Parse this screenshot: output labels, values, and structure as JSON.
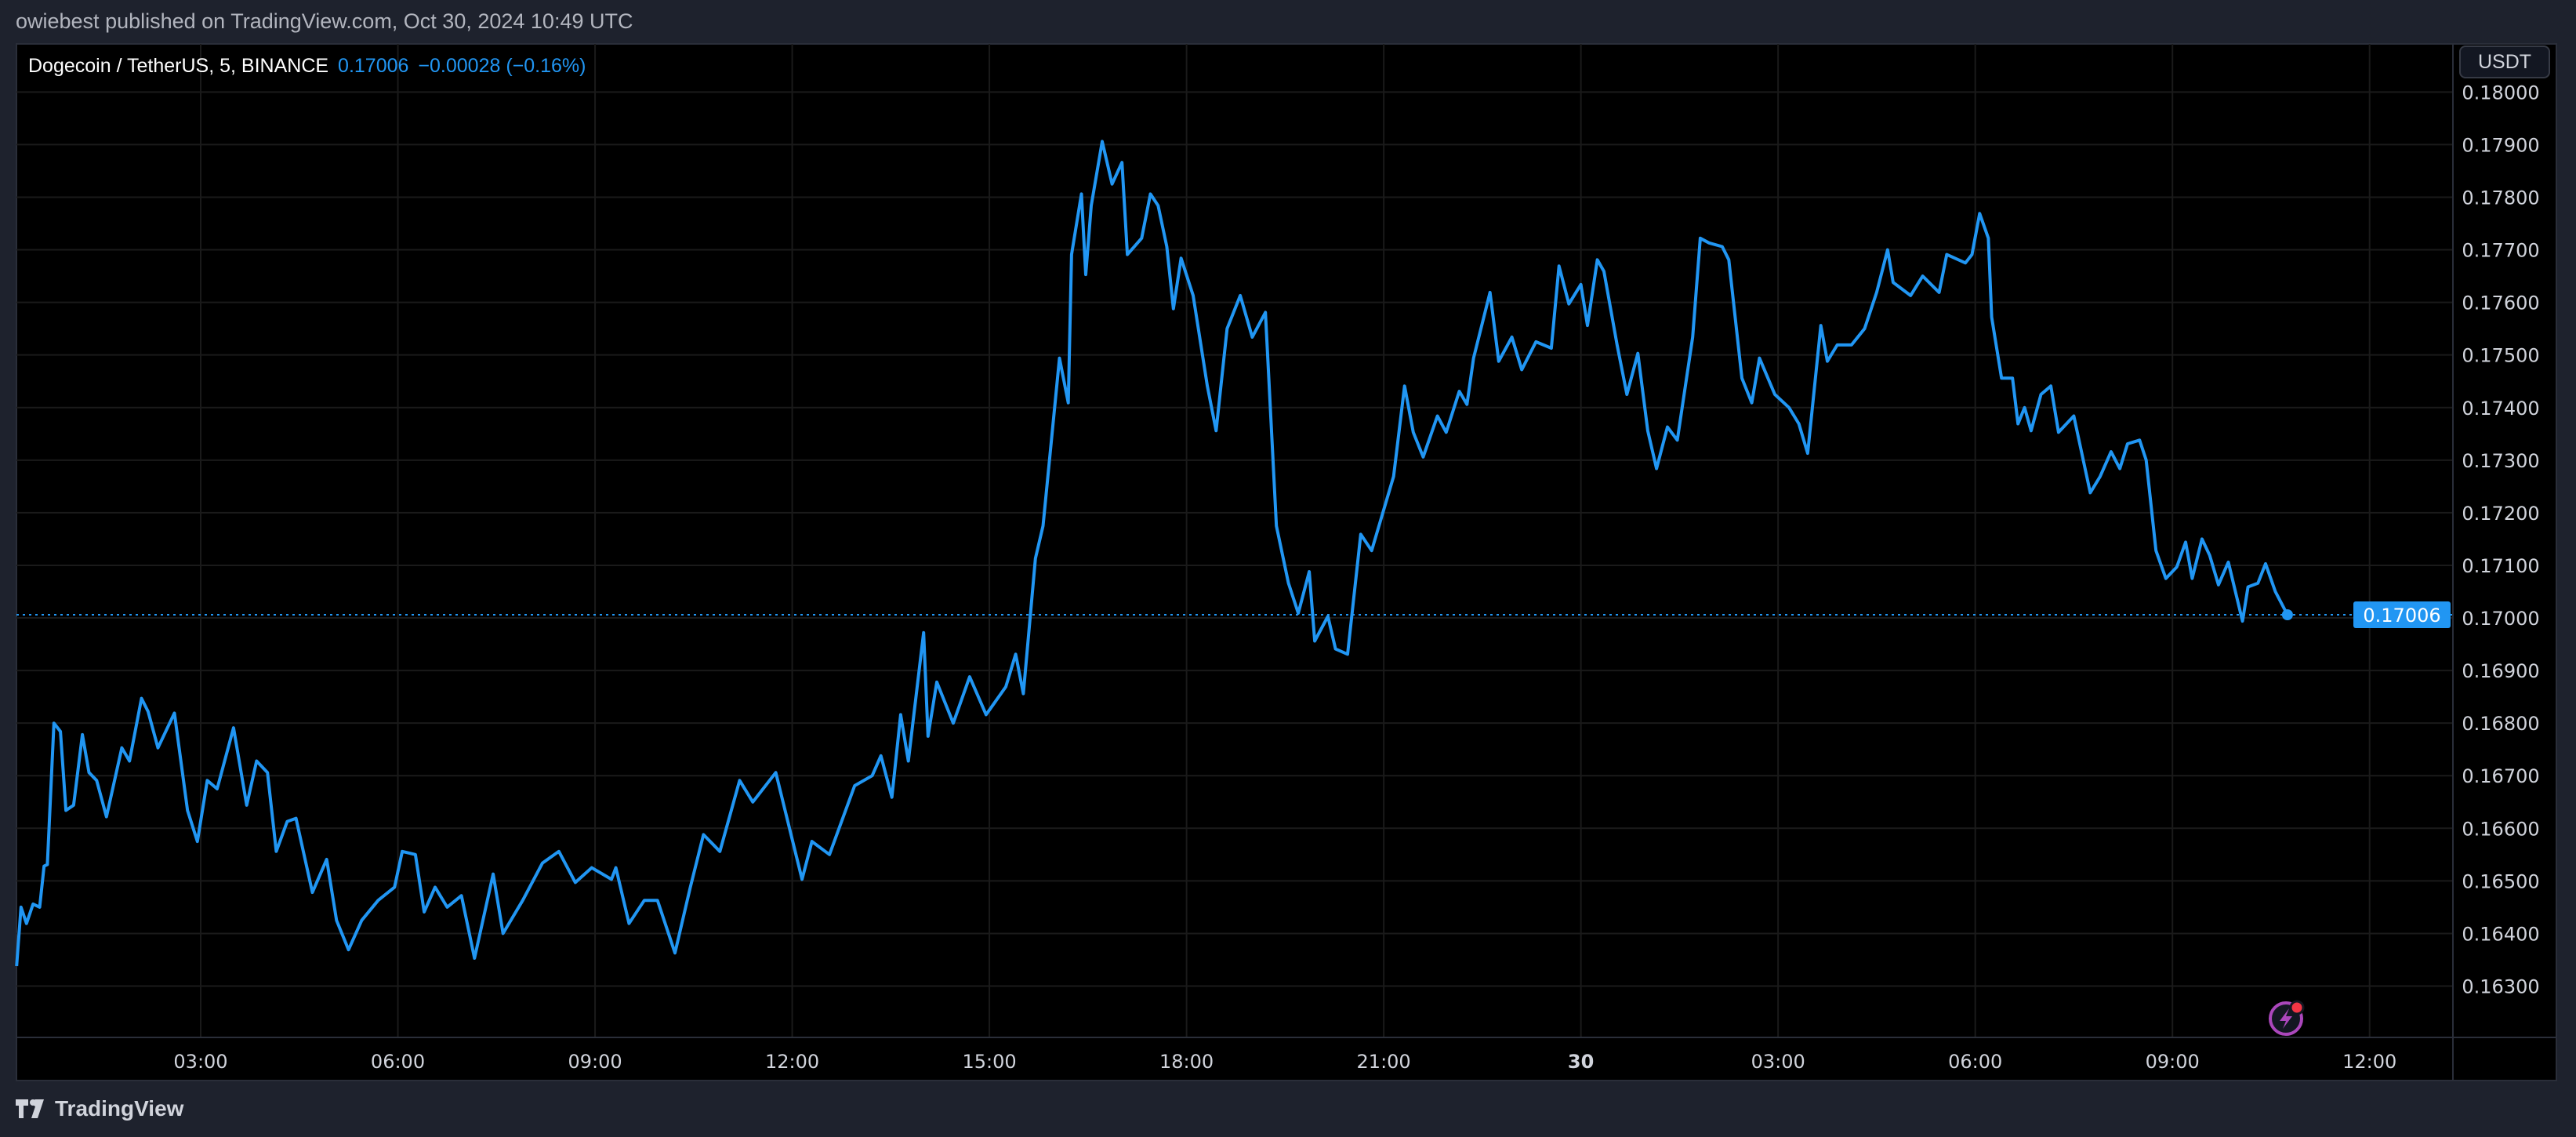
{
  "header": {
    "published": "owiebest published on TradingView.com, Oct 30, 2024 10:49 UTC"
  },
  "legend": {
    "symbol": "Dogecoin / TetherUS, 5, BINANCE",
    "last": "0.17006",
    "change": "−0.00028 (−0.16%)"
  },
  "currency_button": "USDT",
  "footer": {
    "brand": "TradingView"
  },
  "colors": {
    "line": "#2196f3",
    "background": "#000000",
    "grid": "#1a1a1a",
    "alert_icon": "#ab47bc",
    "alert_dot": "#f23645"
  },
  "chart_data": {
    "type": "line",
    "title": "Dogecoin / TetherUS, 5, BINANCE",
    "grid": true,
    "ylim": [
      0.1621,
      0.1806
    ],
    "yticks": [
      "0.16300",
      "0.16400",
      "0.16500",
      "0.16600",
      "0.16700",
      "0.16800",
      "0.16900",
      "0.17000",
      "0.17100",
      "0.17200",
      "0.17300",
      "0.17400",
      "0.17500",
      "0.17600",
      "0.17700",
      "0.17800",
      "0.17900",
      "0.18000"
    ],
    "xticks": [
      {
        "t": "2024-10-29 03:00",
        "label": "03:00"
      },
      {
        "t": "2024-10-29 06:00",
        "label": "06:00"
      },
      {
        "t": "2024-10-29 09:00",
        "label": "09:00"
      },
      {
        "t": "2024-10-29 12:00",
        "label": "12:00"
      },
      {
        "t": "2024-10-29 15:00",
        "label": "15:00"
      },
      {
        "t": "2024-10-29 18:00",
        "label": "18:00"
      },
      {
        "t": "2024-10-29 21:00",
        "label": "21:00"
      },
      {
        "t": "2024-10-30 00:00",
        "label": "30",
        "bold": true
      },
      {
        "t": "2024-10-30 03:00",
        "label": "03:00"
      },
      {
        "t": "2024-10-30 06:00",
        "label": "06:00"
      },
      {
        "t": "2024-10-30 09:00",
        "label": "09:00"
      },
      {
        "t": "2024-10-30 12:00",
        "label": "12:00"
      }
    ],
    "last_price": 0.17006,
    "last_price_label": "0.17006",
    "series": [
      {
        "points": [
          [
            "2024-10-29 00:12",
            0.16338
          ],
          [
            "2024-10-29 00:16",
            0.1645
          ],
          [
            "2024-10-29 00:21",
            0.16419
          ],
          [
            "2024-10-29 00:27",
            0.16456
          ],
          [
            "2024-10-29 00:33",
            0.1645
          ],
          [
            "2024-10-29 00:37",
            0.16528
          ],
          [
            "2024-10-29 00:40",
            0.16531
          ],
          [
            "2024-10-29 00:46",
            0.168
          ],
          [
            "2024-10-29 00:52",
            0.16784
          ],
          [
            "2024-10-29 00:57",
            0.16634
          ],
          [
            "2024-10-29 01:04",
            0.16644
          ],
          [
            "2024-10-29 01:12",
            0.16778
          ],
          [
            "2024-10-29 01:18",
            0.16706
          ],
          [
            "2024-10-29 01:25",
            0.16691
          ],
          [
            "2024-10-29 01:34",
            0.16622
          ],
          [
            "2024-10-29 01:48",
            0.16753
          ],
          [
            "2024-10-29 01:55",
            0.16728
          ],
          [
            "2024-10-29 02:06",
            0.16847
          ],
          [
            "2024-10-29 02:12",
            0.16822
          ],
          [
            "2024-10-29 02:21",
            0.16753
          ],
          [
            "2024-10-29 02:36",
            0.16819
          ],
          [
            "2024-10-29 02:48",
            0.16634
          ],
          [
            "2024-10-29 02:57",
            0.16575
          ],
          [
            "2024-10-29 03:06",
            0.16691
          ],
          [
            "2024-10-29 03:15",
            0.16675
          ],
          [
            "2024-10-29 03:30",
            0.16791
          ],
          [
            "2024-10-29 03:42",
            0.16644
          ],
          [
            "2024-10-29 03:51",
            0.16728
          ],
          [
            "2024-10-29 04:01",
            0.16706
          ],
          [
            "2024-10-29 04:09",
            0.16556
          ],
          [
            "2024-10-29 04:19",
            0.16613
          ],
          [
            "2024-10-29 04:27",
            0.16619
          ],
          [
            "2024-10-29 04:42",
            0.16478
          ],
          [
            "2024-10-29 04:55",
            0.16541
          ],
          [
            "2024-10-29 05:04",
            0.16425
          ],
          [
            "2024-10-29 05:15",
            0.16369
          ],
          [
            "2024-10-29 05:27",
            0.16425
          ],
          [
            "2024-10-29 05:42",
            0.16463
          ],
          [
            "2024-10-29 05:57",
            0.16488
          ],
          [
            "2024-10-29 06:04",
            0.16556
          ],
          [
            "2024-10-29 06:16",
            0.1655
          ],
          [
            "2024-10-29 06:24",
            0.16441
          ],
          [
            "2024-10-29 06:34",
            0.16488
          ],
          [
            "2024-10-29 06:45",
            0.1645
          ],
          [
            "2024-10-29 06:58",
            0.16472
          ],
          [
            "2024-10-29 07:10",
            0.16353
          ],
          [
            "2024-10-29 07:27",
            0.16513
          ],
          [
            "2024-10-29 07:36",
            0.164
          ],
          [
            "2024-10-29 07:54",
            0.16463
          ],
          [
            "2024-10-29 08:12",
            0.16534
          ],
          [
            "2024-10-29 08:27",
            0.16556
          ],
          [
            "2024-10-29 08:42",
            0.16497
          ],
          [
            "2024-10-29 08:57",
            0.16525
          ],
          [
            "2024-10-29 09:15",
            0.16503
          ],
          [
            "2024-10-29 09:19",
            0.16525
          ],
          [
            "2024-10-29 09:31",
            0.16419
          ],
          [
            "2024-10-29 09:45",
            0.16463
          ],
          [
            "2024-10-29 09:57",
            0.16463
          ],
          [
            "2024-10-29 10:13",
            0.16363
          ],
          [
            "2024-10-29 10:27",
            0.16488
          ],
          [
            "2024-10-29 10:39",
            0.16588
          ],
          [
            "2024-10-29 10:54",
            0.16556
          ],
          [
            "2024-10-29 11:12",
            0.16691
          ],
          [
            "2024-10-29 11:24",
            0.1665
          ],
          [
            "2024-10-29 11:45",
            0.16706
          ],
          [
            "2024-10-29 12:09",
            0.16503
          ],
          [
            "2024-10-29 12:18",
            0.16575
          ],
          [
            "2024-10-29 12:34",
            0.1655
          ],
          [
            "2024-10-29 12:57",
            0.16681
          ],
          [
            "2024-10-29 13:13",
            0.167
          ],
          [
            "2024-10-29 13:21",
            0.16738
          ],
          [
            "2024-10-29 13:31",
            0.16659
          ],
          [
            "2024-10-29 13:39",
            0.16816
          ],
          [
            "2024-10-29 13:46",
            0.16728
          ],
          [
            "2024-10-29 14:00",
            0.16972
          ],
          [
            "2024-10-29 14:04",
            0.16775
          ],
          [
            "2024-10-29 14:12",
            0.16878
          ],
          [
            "2024-10-29 14:27",
            0.168
          ],
          [
            "2024-10-29 14:42",
            0.16888
          ],
          [
            "2024-10-29 14:57",
            0.16816
          ],
          [
            "2024-10-29 15:15",
            0.16869
          ],
          [
            "2024-10-29 15:24",
            0.16931
          ],
          [
            "2024-10-29 15:31",
            0.16856
          ],
          [
            "2024-10-29 15:42",
            0.17113
          ],
          [
            "2024-10-29 15:49",
            0.17175
          ],
          [
            "2024-10-29 16:04",
            0.17494
          ],
          [
            "2024-10-29 16:12",
            0.17409
          ],
          [
            "2024-10-29 16:15",
            0.17691
          ],
          [
            "2024-10-29 16:24",
            0.17806
          ],
          [
            "2024-10-29 16:28",
            0.17653
          ],
          [
            "2024-10-29 16:33",
            0.17784
          ],
          [
            "2024-10-29 16:43",
            0.17906
          ],
          [
            "2024-10-29 16:52",
            0.17825
          ],
          [
            "2024-10-29 17:01",
            0.17866
          ],
          [
            "2024-10-29 17:06",
            0.17691
          ],
          [
            "2024-10-29 17:19",
            0.17722
          ],
          [
            "2024-10-29 17:27",
            0.17806
          ],
          [
            "2024-10-29 17:34",
            0.17784
          ],
          [
            "2024-10-29 17:42",
            0.17706
          ],
          [
            "2024-10-29 17:48",
            0.17588
          ],
          [
            "2024-10-29 17:55",
            0.17684
          ],
          [
            "2024-10-29 18:06",
            0.17613
          ],
          [
            "2024-10-29 18:19",
            0.17441
          ],
          [
            "2024-10-29 18:27",
            0.17356
          ],
          [
            "2024-10-29 18:37",
            0.1755
          ],
          [
            "2024-10-29 18:49",
            0.17613
          ],
          [
            "2024-10-29 19:00",
            0.17534
          ],
          [
            "2024-10-29 19:12",
            0.17581
          ],
          [
            "2024-10-29 19:22",
            0.17175
          ],
          [
            "2024-10-29 19:33",
            0.17066
          ],
          [
            "2024-10-29 19:42",
            0.17009
          ],
          [
            "2024-10-29 19:52",
            0.17088
          ],
          [
            "2024-10-29 19:57",
            0.16956
          ],
          [
            "2024-10-29 20:09",
            0.17003
          ],
          [
            "2024-10-29 20:16",
            0.16941
          ],
          [
            "2024-10-29 20:27",
            0.16931
          ],
          [
            "2024-10-29 20:39",
            0.17159
          ],
          [
            "2024-10-29 20:49",
            0.17128
          ],
          [
            "2024-10-29 21:09",
            0.17269
          ],
          [
            "2024-10-29 21:19",
            0.17441
          ],
          [
            "2024-10-29 21:27",
            0.17353
          ],
          [
            "2024-10-29 21:36",
            0.17306
          ],
          [
            "2024-10-29 21:49",
            0.17384
          ],
          [
            "2024-10-29 21:57",
            0.17353
          ],
          [
            "2024-10-29 22:09",
            0.17431
          ],
          [
            "2024-10-29 22:16",
            0.17406
          ],
          [
            "2024-10-29 22:22",
            0.17494
          ],
          [
            "2024-10-29 22:37",
            0.17619
          ],
          [
            "2024-10-29 22:45",
            0.17488
          ],
          [
            "2024-10-29 22:57",
            0.17534
          ],
          [
            "2024-10-29 23:06",
            0.17472
          ],
          [
            "2024-10-29 23:19",
            0.17525
          ],
          [
            "2024-10-29 23:33",
            0.17513
          ],
          [
            "2024-10-29 23:40",
            0.17669
          ],
          [
            "2024-10-29 23:49",
            0.17597
          ],
          [
            "2024-10-30 00:00",
            0.17634
          ],
          [
            "2024-10-30 00:06",
            0.17556
          ],
          [
            "2024-10-30 00:15",
            0.17681
          ],
          [
            "2024-10-30 00:21",
            0.17659
          ],
          [
            "2024-10-30 00:33",
            0.17519
          ],
          [
            "2024-10-30 00:42",
            0.17425
          ],
          [
            "2024-10-30 00:52",
            0.17503
          ],
          [
            "2024-10-30 01:01",
            0.17356
          ],
          [
            "2024-10-30 01:09",
            0.17284
          ],
          [
            "2024-10-30 01:19",
            0.17363
          ],
          [
            "2024-10-30 01:28",
            0.17338
          ],
          [
            "2024-10-30 01:42",
            0.17534
          ],
          [
            "2024-10-30 01:49",
            0.17722
          ],
          [
            "2024-10-30 01:57",
            0.17713
          ],
          [
            "2024-10-30 02:09",
            0.17706
          ],
          [
            "2024-10-30 02:15",
            0.17681
          ],
          [
            "2024-10-30 02:27",
            0.17456
          ],
          [
            "2024-10-30 02:36",
            0.17409
          ],
          [
            "2024-10-30 02:43",
            0.17494
          ],
          [
            "2024-10-30 02:57",
            0.17425
          ],
          [
            "2024-10-30 03:10",
            0.174
          ],
          [
            "2024-10-30 03:19",
            0.17369
          ],
          [
            "2024-10-30 03:27",
            0.17313
          ],
          [
            "2024-10-30 03:39",
            0.17556
          ],
          [
            "2024-10-30 03:45",
            0.17488
          ],
          [
            "2024-10-30 03:54",
            0.17519
          ],
          [
            "2024-10-30 04:07",
            0.17519
          ],
          [
            "2024-10-30 04:19",
            0.1755
          ],
          [
            "2024-10-30 04:30",
            0.17619
          ],
          [
            "2024-10-30 04:40",
            0.177
          ],
          [
            "2024-10-30 04:45",
            0.17638
          ],
          [
            "2024-10-30 05:01",
            0.17613
          ],
          [
            "2024-10-30 05:12",
            0.1765
          ],
          [
            "2024-10-30 05:27",
            0.17619
          ],
          [
            "2024-10-30 05:34",
            0.17691
          ],
          [
            "2024-10-30 05:51",
            0.17675
          ],
          [
            "2024-10-30 05:57",
            0.17691
          ],
          [
            "2024-10-30 06:04",
            0.17769
          ],
          [
            "2024-10-30 06:12",
            0.17722
          ],
          [
            "2024-10-30 06:15",
            0.17572
          ],
          [
            "2024-10-30 06:24",
            0.17456
          ],
          [
            "2024-10-30 06:34",
            0.17456
          ],
          [
            "2024-10-30 06:39",
            0.17369
          ],
          [
            "2024-10-30 06:45",
            0.174
          ],
          [
            "2024-10-30 06:51",
            0.17356
          ],
          [
            "2024-10-30 07:00",
            0.17425
          ],
          [
            "2024-10-30 07:09",
            0.17441
          ],
          [
            "2024-10-30 07:16",
            0.17353
          ],
          [
            "2024-10-30 07:30",
            0.17384
          ],
          [
            "2024-10-30 07:45",
            0.17238
          ],
          [
            "2024-10-30 07:54",
            0.17269
          ],
          [
            "2024-10-30 08:04",
            0.17316
          ],
          [
            "2024-10-30 08:12",
            0.17284
          ],
          [
            "2024-10-30 08:19",
            0.17331
          ],
          [
            "2024-10-30 08:30",
            0.17338
          ],
          [
            "2024-10-30 08:36",
            0.173
          ],
          [
            "2024-10-30 08:45",
            0.17128
          ],
          [
            "2024-10-30 08:54",
            0.17075
          ],
          [
            "2024-10-30 09:04",
            0.17097
          ],
          [
            "2024-10-30 09:12",
            0.17144
          ],
          [
            "2024-10-30 09:18",
            0.17075
          ],
          [
            "2024-10-30 09:27",
            0.1715
          ],
          [
            "2024-10-30 09:34",
            0.17119
          ],
          [
            "2024-10-30 09:42",
            0.17063
          ],
          [
            "2024-10-30 09:51",
            0.17106
          ],
          [
            "2024-10-30 10:04",
            0.16994
          ],
          [
            "2024-10-30 10:09",
            0.17059
          ],
          [
            "2024-10-30 10:18",
            0.17066
          ],
          [
            "2024-10-30 10:25",
            0.17103
          ],
          [
            "2024-10-30 10:34",
            0.1705
          ],
          [
            "2024-10-30 10:45",
            0.17006
          ]
        ]
      }
    ]
  }
}
